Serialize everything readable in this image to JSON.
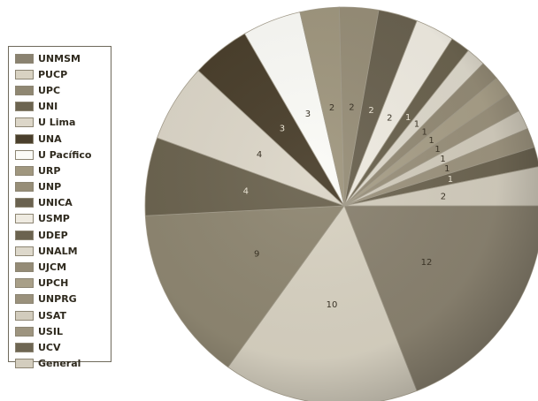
{
  "chart_data": {
    "type": "pie",
    "title": "",
    "legend_position": "left",
    "slices": [
      {
        "label": "UNMSM",
        "value": 12,
        "color": "#8a8270"
      },
      {
        "label": "PUCP",
        "value": 10,
        "color": "#d8d2c2"
      },
      {
        "label": "UPC",
        "value": 9,
        "color": "#8f8772"
      },
      {
        "label": "UNI",
        "value": 4,
        "color": "#6c6450"
      },
      {
        "label": "U Lima",
        "value": 4,
        "color": "#dcd6c8"
      },
      {
        "label": "UNA",
        "value": 3,
        "color": "#4a3f2c"
      },
      {
        "label": "U Pacífico",
        "value": 3,
        "color": "#fbfbf7"
      },
      {
        "label": "URP",
        "value": 2,
        "color": "#a0977f"
      },
      {
        "label": "UNP",
        "value": 2,
        "color": "#978e78"
      },
      {
        "label": "UNICA",
        "value": 2,
        "color": "#6a6250"
      },
      {
        "label": "USMP",
        "value": 2,
        "color": "#efebe1"
      },
      {
        "label": "UDEP",
        "value": 1,
        "color": "#6b634f"
      },
      {
        "label": "UNALM",
        "value": 1,
        "color": "#ddd8cb"
      },
      {
        "label": "UJCM",
        "value": 1,
        "color": "#948b76"
      },
      {
        "label": "UPCH",
        "value": 1,
        "color": "#a89f88"
      },
      {
        "label": "UNPRG",
        "value": 1,
        "color": "#9a917c"
      },
      {
        "label": "USAT",
        "value": 1,
        "color": "#d2ccbd"
      },
      {
        "label": "USIL",
        "value": 1,
        "color": "#9d947f"
      },
      {
        "label": "UCV",
        "value": 1,
        "color": "#6e6653"
      },
      {
        "label": "General",
        "value": 2,
        "color": "#d3cdbe"
      }
    ]
  }
}
